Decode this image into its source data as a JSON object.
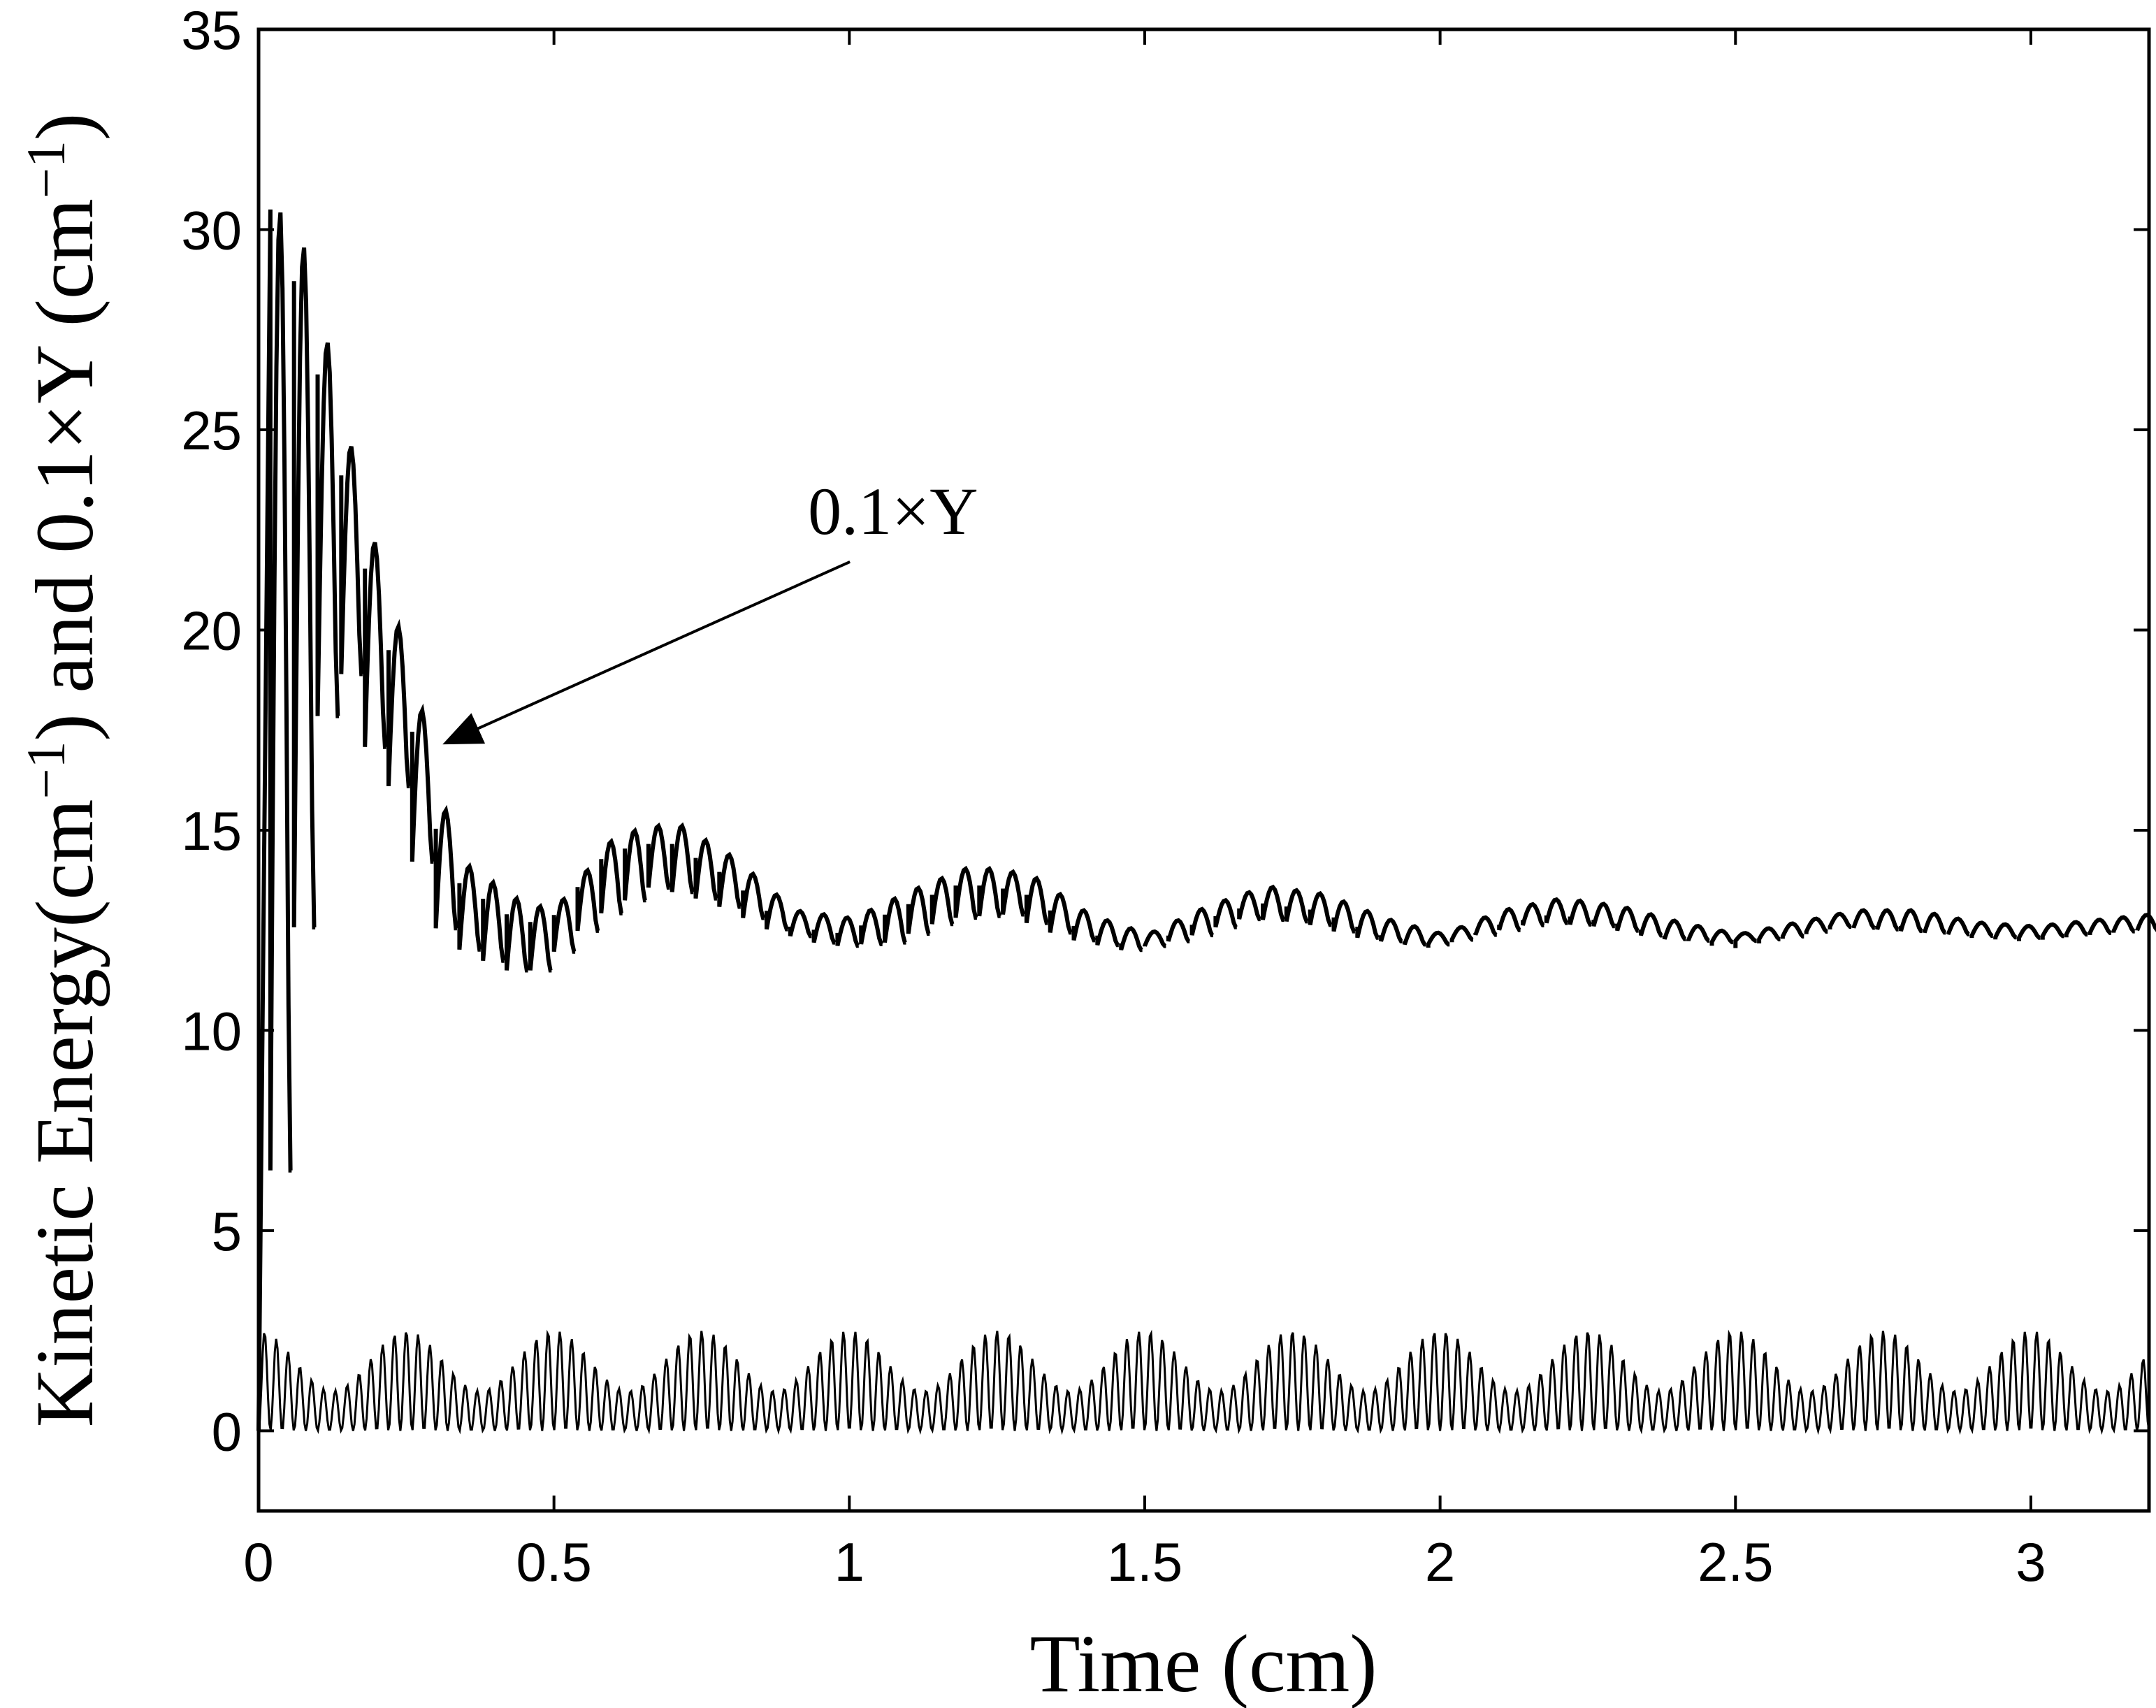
{
  "chart_data": {
    "type": "line",
    "xlabel": "Time (cm)",
    "ylabel": {
      "base": "Kinetic Energy(cm",
      "sup1": "−1",
      "mid": ") and 0.1×Y (cm",
      "sup2": "−1",
      "end": ")"
    },
    "xlim": [
      0,
      3.2
    ],
    "ylim": [
      -2,
      35
    ],
    "xticks": [
      "0",
      "0.5",
      "1",
      "1.5",
      "2",
      "2.5",
      "3"
    ],
    "xtick_values": [
      0,
      0.5,
      1,
      1.5,
      2,
      2.5,
      3
    ],
    "yticks": [
      "0",
      "5",
      "10",
      "15",
      "20",
      "25",
      "30",
      "35"
    ],
    "ytick_values": [
      0,
      5,
      10,
      15,
      20,
      25,
      30,
      35
    ],
    "grid": false,
    "annotation": {
      "text": "0.1×Y",
      "target": [
        0.32,
        17.2
      ],
      "label_at": [
        0.93,
        22.4
      ]
    },
    "series": [
      {
        "id": "scaled_y",
        "note_in_plot": "0.1×Y",
        "style": "dashed",
        "envelope_peaks": [
          [
            0.03,
            30.5
          ],
          [
            0.07,
            29.6
          ],
          [
            0.11,
            27.2
          ],
          [
            0.15,
            24.6
          ],
          [
            0.19,
            22.2
          ],
          [
            0.23,
            20.1
          ],
          [
            0.27,
            18.0
          ],
          [
            0.31,
            15.5
          ],
          [
            0.35,
            14.1
          ],
          [
            0.45,
            13.1
          ],
          [
            0.5,
            13.1
          ],
          [
            0.6,
            14.9
          ],
          [
            0.7,
            15.2
          ],
          [
            0.8,
            14.3
          ],
          [
            0.9,
            13.0
          ],
          [
            1.0,
            12.8
          ],
          [
            1.1,
            13.5
          ],
          [
            1.2,
            14.1
          ],
          [
            1.3,
            13.9
          ],
          [
            1.4,
            12.9
          ],
          [
            1.5,
            12.4
          ],
          [
            1.6,
            13.1
          ],
          [
            1.7,
            13.6
          ],
          [
            1.8,
            13.4
          ],
          [
            1.9,
            12.8
          ],
          [
            2.0,
            12.4
          ],
          [
            2.1,
            13.0
          ],
          [
            2.2,
            13.3
          ],
          [
            2.3,
            13.1
          ],
          [
            2.4,
            12.7
          ],
          [
            2.5,
            12.4
          ],
          [
            2.6,
            12.7
          ],
          [
            2.7,
            13.0
          ],
          [
            2.8,
            13.0
          ],
          [
            2.9,
            12.7
          ],
          [
            3.0,
            12.6
          ],
          [
            3.2,
            12.9
          ]
        ],
        "envelope_troughs": [
          [
            0.03,
            6.7
          ],
          [
            0.07,
            6.4
          ],
          [
            0.11,
            15.9
          ],
          [
            0.15,
            18.9
          ],
          [
            0.19,
            18.9
          ],
          [
            0.23,
            16.1
          ],
          [
            0.27,
            16.1
          ],
          [
            0.31,
            13.2
          ],
          [
            0.35,
            12.2
          ],
          [
            0.45,
            11.5
          ],
          [
            0.5,
            11.5
          ],
          [
            0.6,
            12.8
          ],
          [
            0.7,
            13.6
          ],
          [
            0.8,
            13.2
          ],
          [
            0.9,
            12.5
          ],
          [
            1.0,
            12.1
          ],
          [
            1.1,
            12.2
          ],
          [
            1.2,
            12.8
          ],
          [
            1.3,
            12.9
          ],
          [
            1.4,
            12.3
          ],
          [
            1.5,
            12.0
          ],
          [
            1.6,
            12.3
          ],
          [
            1.7,
            12.8
          ],
          [
            1.8,
            12.7
          ],
          [
            1.9,
            12.3
          ],
          [
            2.0,
            12.1
          ],
          [
            2.1,
            12.4
          ],
          [
            2.2,
            12.7
          ],
          [
            2.3,
            12.6
          ],
          [
            2.4,
            12.3
          ],
          [
            2.5,
            12.2
          ],
          [
            2.6,
            12.3
          ],
          [
            2.7,
            12.6
          ],
          [
            2.8,
            12.5
          ],
          [
            2.9,
            12.4
          ],
          [
            3.0,
            12.3
          ],
          [
            3.2,
            12.5
          ]
        ]
      },
      {
        "id": "kinetic_energy",
        "style": "solid",
        "min": 0,
        "max": 2.5,
        "oscillation_period": 0.02
      }
    ]
  }
}
